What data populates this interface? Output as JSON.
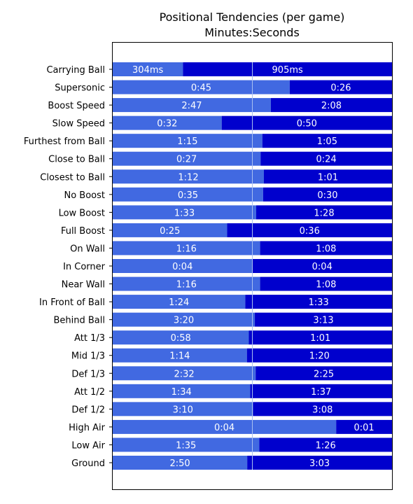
{
  "chart_data": {
    "type": "bar",
    "orientation": "horizontal",
    "stacked": true,
    "normalized": true,
    "title": "Positional Tendencies (per game)",
    "subtitle": "Minutes:Seconds",
    "categories": [
      "Carrying Ball",
      "Supersonic",
      "Boost Speed",
      "Slow Speed",
      "Furthest from Ball",
      "Close to Ball",
      "Closest to Ball",
      "No Boost",
      "Low Boost",
      "Full Boost",
      "On Wall",
      "In Corner",
      "Near Wall",
      "In Front of Ball",
      "Behind Ball",
      "Att 1/3",
      "Mid 1/3",
      "Def 1/3",
      "Att 1/2",
      "Def 1/2",
      "High Air",
      "Low Air",
      "Ground"
    ],
    "series": [
      {
        "color": "#4169e1",
        "labels": [
          "304ms",
          "0:45",
          "2:47",
          "0:32",
          "1:15",
          "0:27",
          "1:12",
          "0:35",
          "1:33",
          "0:25",
          "1:16",
          "0:04",
          "1:16",
          "1:24",
          "3:20",
          "0:58",
          "1:14",
          "2:32",
          "1:34",
          "3:10",
          "0:04",
          "1:35",
          "2:50"
        ],
        "values": [
          0.304,
          45,
          167,
          32,
          75,
          27,
          72,
          35,
          93,
          25,
          76,
          4,
          76,
          84,
          200,
          58,
          74,
          152,
          94,
          190,
          4,
          95,
          170
        ]
      },
      {
        "color": "#0000cd",
        "labels": [
          "905ms",
          "0:26",
          "2:08",
          "0:50",
          "1:05",
          "0:24",
          "1:01",
          "0:30",
          "1:28",
          "0:36",
          "1:08",
          "0:04",
          "1:08",
          "1:33",
          "3:13",
          "1:01",
          "1:20",
          "2:25",
          "1:37",
          "3:08",
          "0:01",
          "1:26",
          "3:03"
        ],
        "values": [
          0.905,
          26,
          128,
          50,
          65,
          24,
          61,
          30,
          88,
          36,
          68,
          4,
          68,
          93,
          193,
          61,
          80,
          145,
          97,
          188,
          1,
          86,
          183
        ]
      }
    ],
    "midline": 0.5,
    "grid": false,
    "legend": "none"
  }
}
